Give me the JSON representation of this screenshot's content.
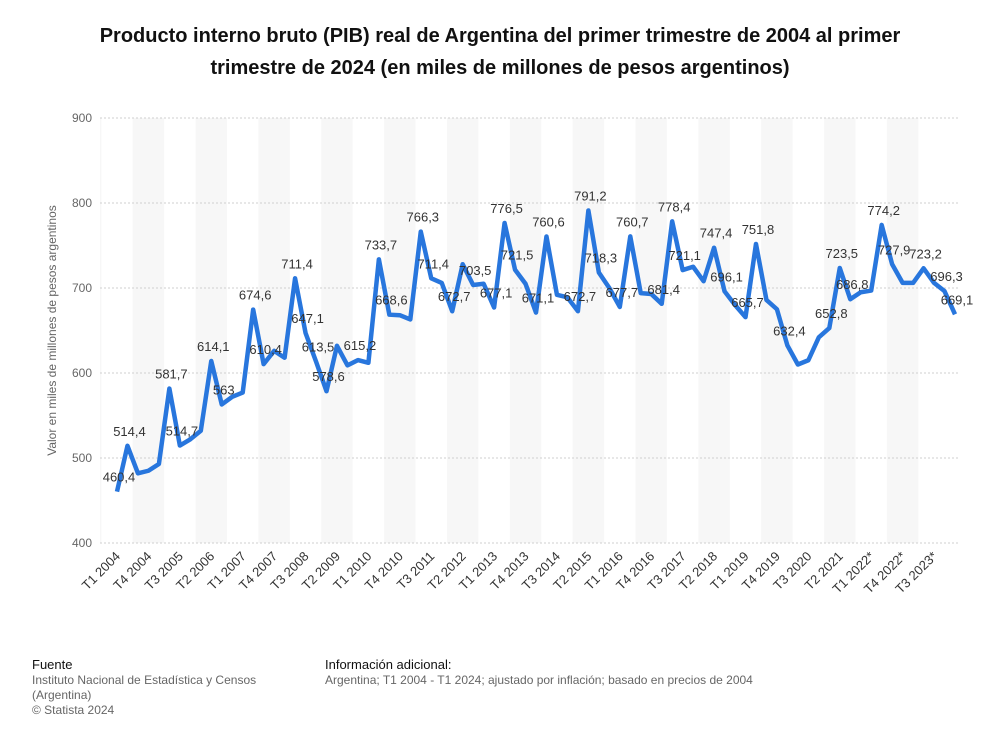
{
  "chart_data": {
    "type": "line",
    "title": "Producto interno bruto (PIB) real de Argentina del primer trimestre de 2004 al primer trimestre de 2024 (en miles de millones de pesos argentinos)",
    "y_label": "Valor en miles de millones de pesos argentinos",
    "categories": [
      "T1 2004",
      null,
      null,
      "T4 2004",
      null,
      null,
      "T3 2005",
      null,
      null,
      "T2 2006",
      null,
      null,
      "T1 2007",
      null,
      null,
      "T4 2007",
      null,
      null,
      "T3 2008",
      null,
      null,
      "T2 2009",
      null,
      null,
      "T1 2010",
      null,
      null,
      "T4 2010",
      null,
      null,
      "T3 2011",
      null,
      null,
      "T2 2012",
      null,
      null,
      "T1 2013",
      null,
      null,
      "T4 2013",
      null,
      null,
      "T3 2014",
      null,
      null,
      "T2 2015",
      null,
      null,
      "T1 2016",
      null,
      null,
      "T4 2016",
      null,
      null,
      "T3 2017",
      null,
      null,
      "T2 2018",
      null,
      null,
      "T1 2019",
      null,
      null,
      "T4 2019",
      null,
      null,
      "T3 2020",
      null,
      null,
      "T2 2021",
      null,
      null,
      "T1 2022*",
      null,
      null,
      "T4 2022*",
      null,
      null,
      "T3 2023*",
      null,
      null
    ],
    "values": [
      460.4,
      514.4,
      482,
      485,
      493,
      581.7,
      514.7,
      522,
      532,
      614.1,
      563,
      572,
      577,
      674.6,
      610.4,
      626,
      618,
      711.4,
      647.1,
      613.5,
      578.6,
      632,
      609,
      615.2,
      612,
      733.7,
      668.6,
      668,
      663,
      766.3,
      711.4,
      706,
      672.7,
      728,
      703.5,
      705,
      677.1,
      776.5,
      721.5,
      705,
      671.1,
      760.6,
      692,
      689,
      672.7,
      791.2,
      718.3,
      700,
      677.7,
      760.7,
      694,
      693,
      681.4,
      778.4,
      721.1,
      725,
      708,
      747.4,
      696.1,
      680,
      665.7,
      751.8,
      686,
      675,
      632.4,
      610,
      615,
      642,
      652.8,
      723.5,
      686.8,
      695,
      697,
      774.2,
      727.9,
      706,
      706,
      723.2,
      706,
      696.3,
      669.1
    ],
    "value_labels": [
      "460,4",
      "514,4",
      null,
      null,
      null,
      "581,7",
      "514,7",
      null,
      null,
      "614,1",
      "563",
      null,
      null,
      "674,6",
      "610,4",
      null,
      null,
      "711,4",
      "647,1",
      "613,5",
      "578,6",
      null,
      null,
      "615,2",
      null,
      "733,7",
      "668,6",
      null,
      null,
      "766,3",
      "711,4",
      null,
      "672,7",
      null,
      "703,5",
      null,
      "677,1",
      "776,5",
      "721,5",
      null,
      "671,1",
      "760,6",
      null,
      null,
      "672,7",
      "791,2",
      "718,3",
      null,
      "677,7",
      "760,7",
      null,
      null,
      "681,4",
      "778,4",
      "721,1",
      null,
      null,
      "747,4",
      "696,1",
      null,
      "665,7",
      "751,8",
      null,
      null,
      "632,4",
      null,
      null,
      null,
      "652,8",
      "723,5",
      "686,8",
      null,
      null,
      "774,2",
      "727,9",
      null,
      null,
      "723,2",
      null,
      "696,3",
      "669,1"
    ],
    "color": "#2876dd",
    "ylim": [
      400,
      900
    ],
    "yticks": [
      400,
      500,
      600,
      700,
      800,
      900
    ],
    "grid": true
  },
  "footer": {
    "source_title": "Fuente",
    "source": "Instituto Nacional de Estadística y Censos (Argentina)",
    "copyright": "© Statista 2024",
    "info_title": "Información adicional:",
    "info": "Argentina; T1 2004 - T1 2024; ajustado por inflación; basado en precios de 2004"
  }
}
